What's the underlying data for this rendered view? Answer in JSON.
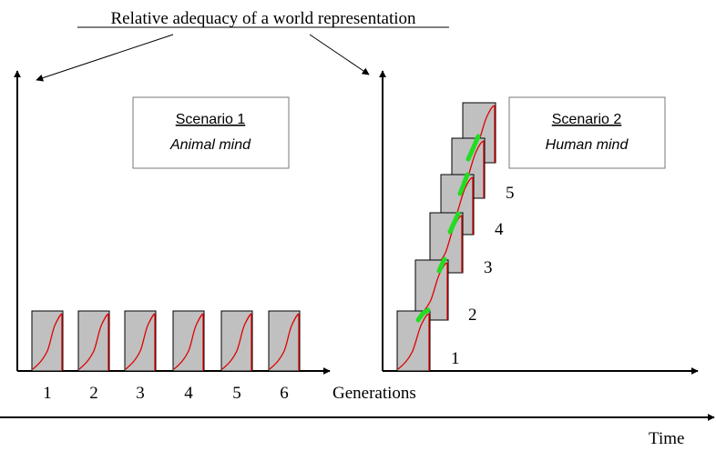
{
  "title": "Relative adequacy of a world representation",
  "scenario1": {
    "title": "Scenario 1",
    "subtitle": "Animal mind",
    "generations": [
      "1",
      "2",
      "3",
      "4",
      "5",
      "6"
    ]
  },
  "scenario2": {
    "title": "Scenario 2",
    "subtitle": "Human mind",
    "step_labels": [
      "1",
      "2",
      "3",
      "4",
      "5"
    ]
  },
  "axis": {
    "generations_label": "Generations",
    "time_label": "Time"
  },
  "colors": {
    "box_fill": "#c0c0c0",
    "curve": "#e00000",
    "transfer": "#22dd22",
    "ink": "#000000"
  }
}
